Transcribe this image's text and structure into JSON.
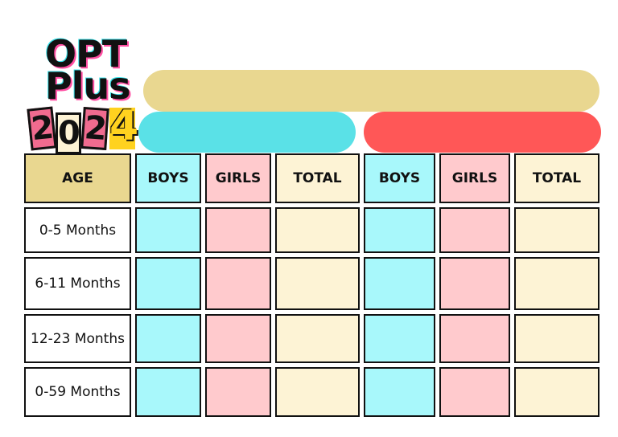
{
  "logo": {
    "line1": "OPT",
    "line2": "Plus",
    "year_digits": [
      "2",
      "0",
      "2",
      "4"
    ]
  },
  "colors": {
    "beige": "#e9d790",
    "cyan": "#5ae1e7",
    "red": "#ff5757",
    "boys": "#a8f8fb",
    "girls": "#ffcacd",
    "total": "#fdf3d5"
  },
  "table": {
    "headers": [
      "AGE",
      "BOYS",
      "GIRLS",
      "TOTAL",
      "BOYS",
      "GIRLS",
      "TOTAL"
    ],
    "rows": [
      "0-5 Months",
      "6-11 Months",
      "12-23 Months",
      "0-59 Months"
    ]
  }
}
